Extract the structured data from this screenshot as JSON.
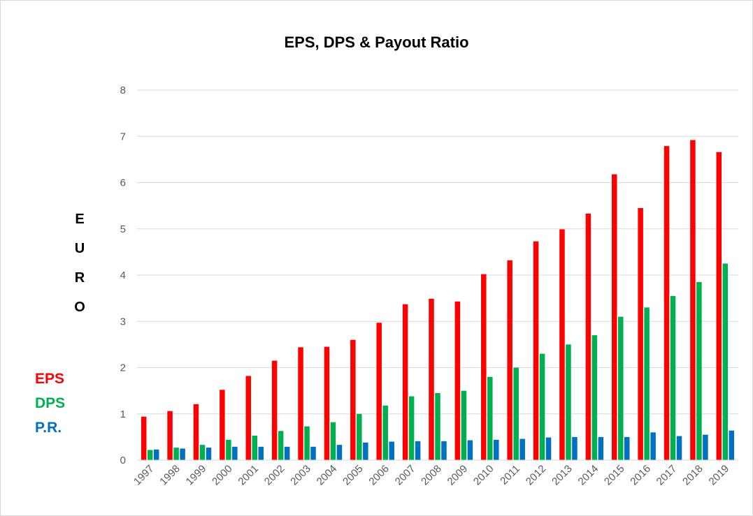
{
  "chart_data": {
    "type": "bar",
    "title": "EPS, DPS & Payout Ratio",
    "ylabel_letters": [
      "E",
      "U",
      "R",
      "O"
    ],
    "xlabel": "",
    "ylim": [
      0,
      8
    ],
    "yticks": [
      "0",
      "1",
      "2",
      "3",
      "4",
      "5",
      "6",
      "7",
      "8"
    ],
    "grid": true,
    "legend_placement": "left",
    "categories": [
      "1997",
      "1998",
      "1999",
      "2000",
      "2001",
      "2002",
      "2003",
      "2004",
      "2005",
      "2006",
      "2007",
      "2008",
      "2009",
      "2010",
      "2011",
      "2012",
      "2013",
      "2014",
      "2015",
      "2016",
      "2017",
      "2018",
      "2019"
    ],
    "series": [
      {
        "name": "EPS",
        "color": "#ff0000",
        "values": [
          0.94,
          1.06,
          1.21,
          1.52,
          1.82,
          2.15,
          2.44,
          2.45,
          2.6,
          2.97,
          3.37,
          3.49,
          3.43,
          4.02,
          4.32,
          4.73,
          4.99,
          5.33,
          6.18,
          5.45,
          6.79,
          6.92,
          6.66
        ]
      },
      {
        "name": "DPS",
        "color": "#00b050",
        "values": [
          0.22,
          0.27,
          0.33,
          0.44,
          0.53,
          0.63,
          0.73,
          0.82,
          1.0,
          1.18,
          1.38,
          1.45,
          1.5,
          1.8,
          2.0,
          2.3,
          2.5,
          2.7,
          3.1,
          3.3,
          3.55,
          3.85,
          4.25
        ]
      },
      {
        "name": "P.R.",
        "color": "#0070c0",
        "values": [
          0.23,
          0.25,
          0.27,
          0.29,
          0.29,
          0.29,
          0.29,
          0.33,
          0.38,
          0.4,
          0.41,
          0.41,
          0.43,
          0.44,
          0.46,
          0.49,
          0.5,
          0.5,
          0.5,
          0.6,
          0.52,
          0.55,
          0.64
        ]
      }
    ]
  }
}
